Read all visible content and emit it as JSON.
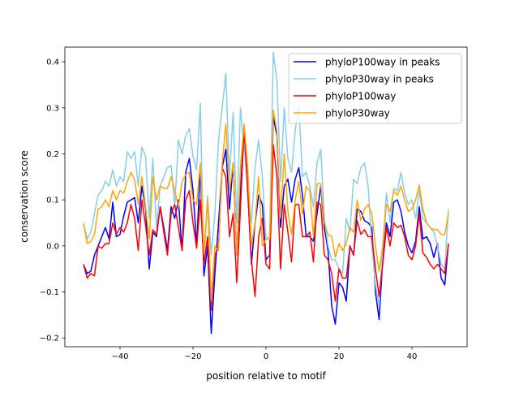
{
  "chart_data": {
    "type": "line",
    "title": "",
    "xlabel": "position relative to motif",
    "ylabel": "conservation score",
    "xlim": [
      -55.1,
      55.1
    ],
    "ylim": [
      -0.219,
      0.432
    ],
    "xticks": [
      -40,
      -20,
      0,
      20,
      40
    ],
    "xtick_labels": [
      "−40",
      "−20",
      "0",
      "20",
      "40"
    ],
    "yticks": [
      -0.2,
      -0.1,
      0.0,
      0.1,
      0.2,
      0.3,
      0.4
    ],
    "ytick_labels": [
      "−0.2",
      "−0.1",
      "0.0",
      "0.1",
      "0.2",
      "0.3",
      "0.4"
    ],
    "grid": false,
    "legend_placement": "top-right",
    "x_start": -50,
    "x_step": 1,
    "series": [
      {
        "name": "phyloP100way in peaks",
        "color": "#0000ff",
        "values": [
          -0.04,
          -0.06,
          -0.055,
          -0.02,
          0,
          0.02,
          0.04,
          0.015,
          0.095,
          0.02,
          0.025,
          0.065,
          0.095,
          0.1,
          0.105,
          0.05,
          0.13,
          0.08,
          -0.05,
          0.03,
          0.02,
          0.085,
          0.04,
          -0.01,
          0.085,
          0.06,
          0.1,
          -0.01,
          0.16,
          0.19,
          0.12,
          0.0,
          0.17,
          -0.065,
          0.0,
          -0.19,
          -0.06,
          0.05,
          0.17,
          0.21,
          0.08,
          0.18,
          -0.02,
          0.12,
          0.25,
          0.12,
          -0.04,
          0.05,
          0.11,
          0.09,
          -0.03,
          -0.02,
          0.28,
          0.24,
          0.04,
          0.13,
          0.145,
          0.095,
          0.145,
          0.17,
          0.11,
          0.02,
          0.02,
          0.01,
          0.07,
          0.13,
          0.04,
          -0.01,
          -0.13,
          -0.17,
          -0.08,
          -0.09,
          -0.12,
          0.0,
          -0.02,
          0.08,
          0.075,
          0.055,
          0.05,
          0.04,
          -0.1,
          -0.16,
          -0.03,
          0.05,
          0.02,
          0.095,
          0.1,
          0.075,
          0.03,
          0.0,
          -0.015,
          0.01,
          0.085,
          0.015,
          0.02,
          0.005,
          -0.025,
          0.005,
          -0.07,
          -0.085,
          0.005
        ]
      },
      {
        "name": "phyloP30way in peaks",
        "color": "#87ceeb",
        "values": [
          0.05,
          0.015,
          0.03,
          0.07,
          0.11,
          0.12,
          0.14,
          0.13,
          0.165,
          0.13,
          0.15,
          0.14,
          0.205,
          0.19,
          0.205,
          0.13,
          0.215,
          0.195,
          0.06,
          0.19,
          0.04,
          0.13,
          0.15,
          0.17,
          0.175,
          0.085,
          0.23,
          0.2,
          0.24,
          0.255,
          0.195,
          0.165,
          0.31,
          -0.04,
          0.11,
          -0.02,
          0.07,
          0.23,
          0.3,
          0.375,
          0.15,
          0.29,
          0.05,
          0.3,
          0.21,
          0.13,
          0.05,
          0.17,
          0.23,
          0.15,
          0.015,
          0.02,
          0.42,
          0.36,
          0.14,
          0.3,
          0.19,
          0.16,
          0.25,
          0.305,
          0.15,
          0.16,
          0.13,
          0.085,
          0.18,
          0.21,
          0.06,
          0.0,
          -0.03,
          -0.03,
          -0.05,
          -0.06,
          0.06,
          0.03,
          0.145,
          0.135,
          0.17,
          0.18,
          0.13,
          0.0,
          -0.085,
          -0.13,
          0.0,
          0.115,
          0.05,
          0.125,
          0.12,
          0.16,
          0.115,
          0.09,
          0.1,
          0.06,
          0.12,
          0.06,
          0.05,
          0.04,
          0.03,
          0.0,
          -0.04,
          -0.05,
          0.08
        ]
      },
      {
        "name": "phyloP100way",
        "color": "#ff0000",
        "values": [
          -0.04,
          -0.07,
          -0.06,
          -0.065,
          0.0,
          -0.005,
          0.005,
          0.005,
          0.05,
          0.025,
          0.04,
          0.03,
          0.05,
          0.09,
          0.06,
          -0.01,
          0.1,
          0.045,
          -0.02,
          0.035,
          0.025,
          0.085,
          0.03,
          -0.02,
          0.07,
          0.09,
          0.04,
          -0.01,
          0.1,
          0.12,
          0.05,
          -0.005,
          0.1,
          -0.04,
          0.02,
          -0.14,
          -0.02,
          0.0,
          0.17,
          0.15,
          0.02,
          0.07,
          -0.08,
          0.08,
          0.26,
          0.12,
          -0.03,
          -0.11,
          0.02,
          0.06,
          -0.04,
          -0.05,
          0.22,
          0.15,
          -0.05,
          0.09,
          0.03,
          -0.035,
          0.09,
          0.09,
          0.02,
          0.02,
          0.03,
          -0.035,
          0.095,
          0.09,
          -0.02,
          -0.03,
          -0.06,
          -0.12,
          -0.05,
          -0.07,
          -0.07,
          0.0,
          -0.02,
          0.055,
          0.025,
          0.035,
          0.02,
          0.02,
          -0.05,
          -0.11,
          -0.04,
          0.04,
          0.0,
          0.05,
          0.04,
          0.045,
          0.02,
          -0.02,
          -0.03,
          0.0,
          0.07,
          -0.015,
          -0.025,
          -0.04,
          -0.05,
          -0.04,
          -0.05,
          -0.06,
          0.005
        ]
      },
      {
        "name": "phyloP30way",
        "color": "#ffa500",
        "values": [
          0.05,
          0.005,
          0.01,
          0.025,
          0.08,
          0.085,
          0.1,
          0.085,
          0.12,
          0.1,
          0.12,
          0.115,
          0.14,
          0.16,
          0.145,
          0.09,
          0.15,
          0.085,
          0.015,
          0.15,
          0.1,
          0.13,
          0.125,
          0.125,
          0.15,
          0.12,
          0.085,
          0.14,
          0.155,
          0.16,
          0.1,
          0.09,
          0.18,
          -0.015,
          0.1,
          -0.12,
          0.0,
          -0.01,
          0.18,
          0.265,
          0.12,
          0.18,
          -0.02,
          0.17,
          0.265,
          0.17,
          0.0,
          0.05,
          0.15,
          0.0,
          0.015,
          0.015,
          0.295,
          0.25,
          0.06,
          0.2,
          0.075,
          0.025,
          0.1,
          0.14,
          0.07,
          0.13,
          0.12,
          0.02,
          0.135,
          0.135,
          0.05,
          0.025,
          0.02,
          -0.025,
          0.005,
          -0.01,
          0.005,
          0.04,
          0.03,
          0.1,
          0.055,
          0.08,
          0.09,
          0.07,
          0.0,
          -0.055,
          0.0,
          0.09,
          0.075,
          0.12,
          0.11,
          0.13,
          0.1,
          0.075,
          0.08,
          0.1,
          0.133,
          0.08,
          0.05,
          0.04,
          0.035,
          0.035,
          0.025,
          0.025,
          0.07
        ]
      }
    ]
  }
}
